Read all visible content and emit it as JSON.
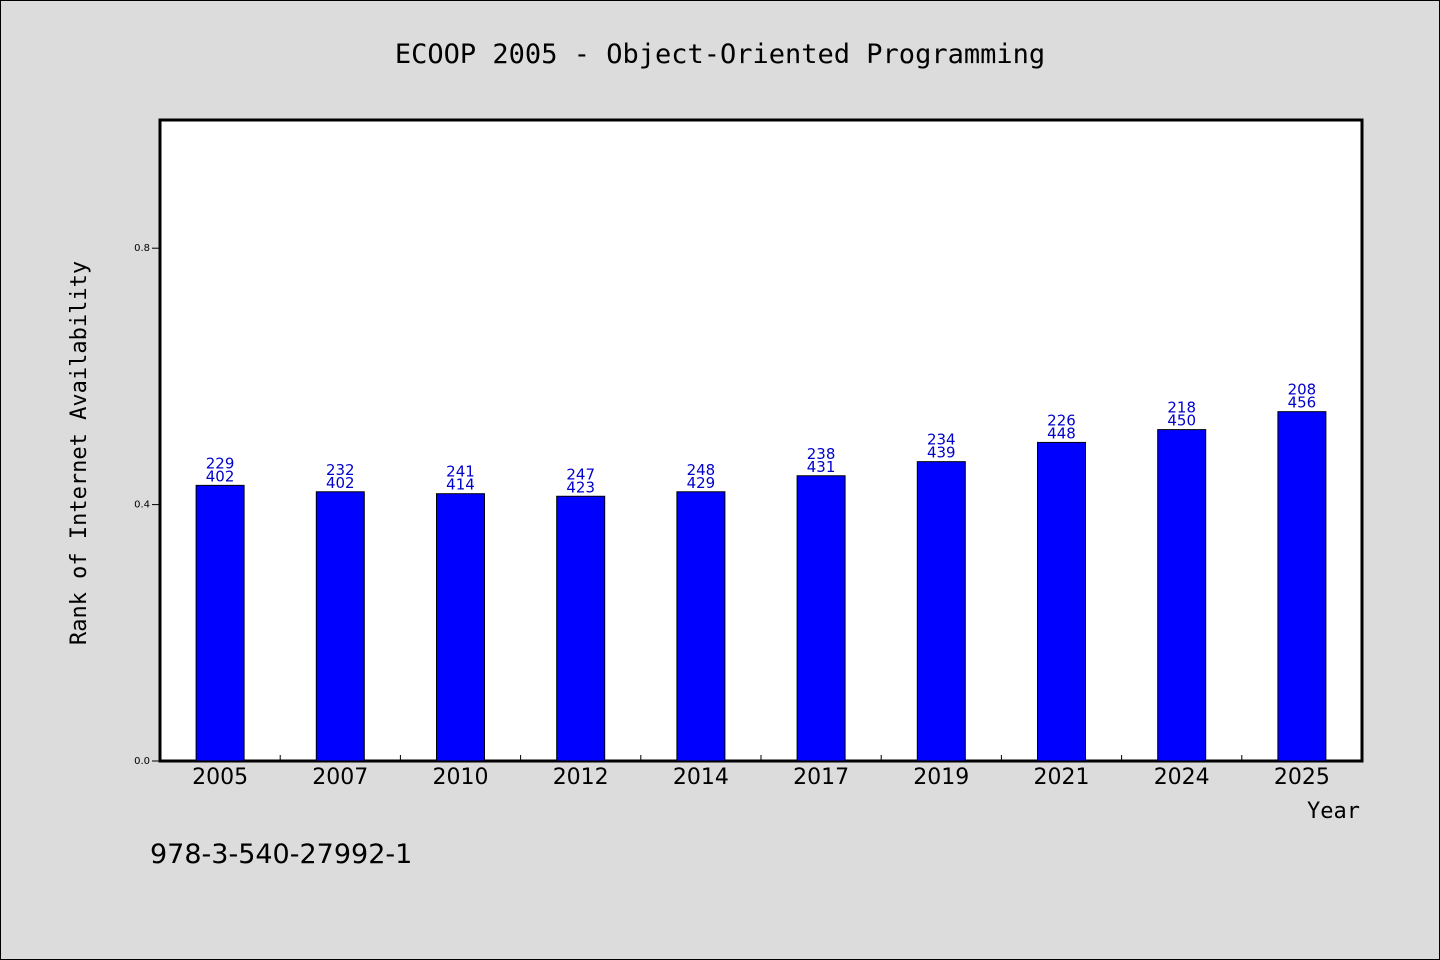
{
  "chart_data": {
    "type": "bar",
    "title": "ECOOP 2005 - Object-Oriented Programming",
    "xlabel": "Year",
    "ylabel": "Rank of Internet Availability",
    "ylim": [
      0,
      1.0
    ],
    "yticks": [
      "0.0",
      "0.4",
      "0.8"
    ],
    "categories": [
      "2005",
      "2007",
      "2010",
      "2012",
      "2014",
      "2017",
      "2019",
      "2021",
      "2024",
      "2025"
    ],
    "values": [
      0.43,
      0.42,
      0.417,
      0.413,
      0.42,
      0.445,
      0.467,
      0.497,
      0.517,
      0.545
    ],
    "label_top": [
      "229",
      "232",
      "241",
      "247",
      "248",
      "238",
      "234",
      "226",
      "218",
      "208"
    ],
    "label_bottom": [
      "402",
      "402",
      "414",
      "423",
      "429",
      "431",
      "439",
      "448",
      "450",
      "456"
    ],
    "bar_color": "#0000ff",
    "label_color": "#0000cc",
    "grid": false
  },
  "footer": {
    "isbn": "978-3-540-27992-1"
  }
}
